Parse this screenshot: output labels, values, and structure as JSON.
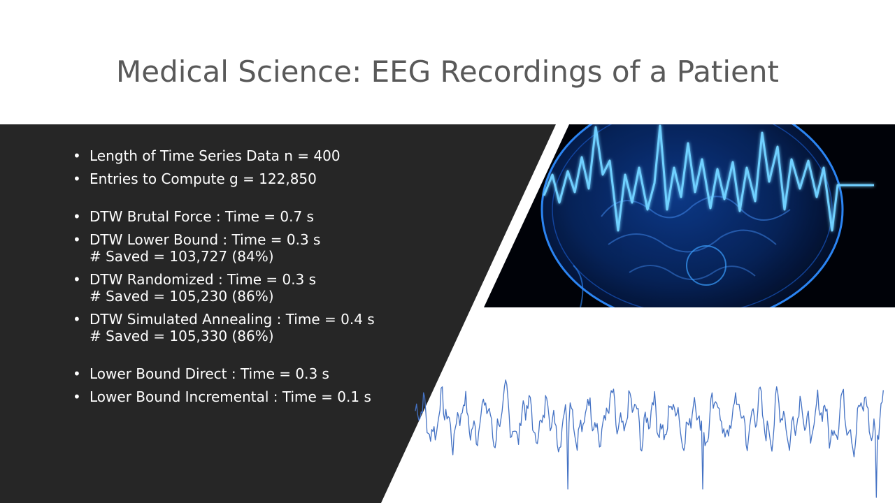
{
  "slide": {
    "title": "Medical Science: EEG Recordings of a Patient",
    "bullets": [
      {
        "line1": "Length of Time Series Data n = 400",
        "line2": ""
      },
      {
        "line1": "Entries to Compute g = 122,850",
        "line2": ""
      },
      {
        "line1": "DTW Brutal Force : Time = 0.7 s",
        "line2": ""
      },
      {
        "line1": "DTW Lower Bound : Time = 0.3 s",
        "line2": "# Saved = 103,727 (84%)"
      },
      {
        "line1": "DTW Randomized : Time  = 0.3 s",
        "line2": "# Saved = 105,230 (86%)"
      },
      {
        "line1": "DTW Simulated Annealing : Time  = 0.4 s",
        "line2": "# Saved = 105,330 (86%)"
      },
      {
        "line1": "Lower Bound Direct : Time = 0.3 s",
        "line2": ""
      },
      {
        "line1": "Lower Bound Incremental : Time = 0.1 s",
        "line2": ""
      }
    ]
  },
  "images": {
    "brain": "glowing-blue-brain-eeg-illustration",
    "signal": "eeg-time-series-line"
  },
  "colors": {
    "panel": "#262626",
    "title": "#595959",
    "text": "#ffffff",
    "signal_line": "#4472c4",
    "brain_glow": "#3aa0ff"
  }
}
